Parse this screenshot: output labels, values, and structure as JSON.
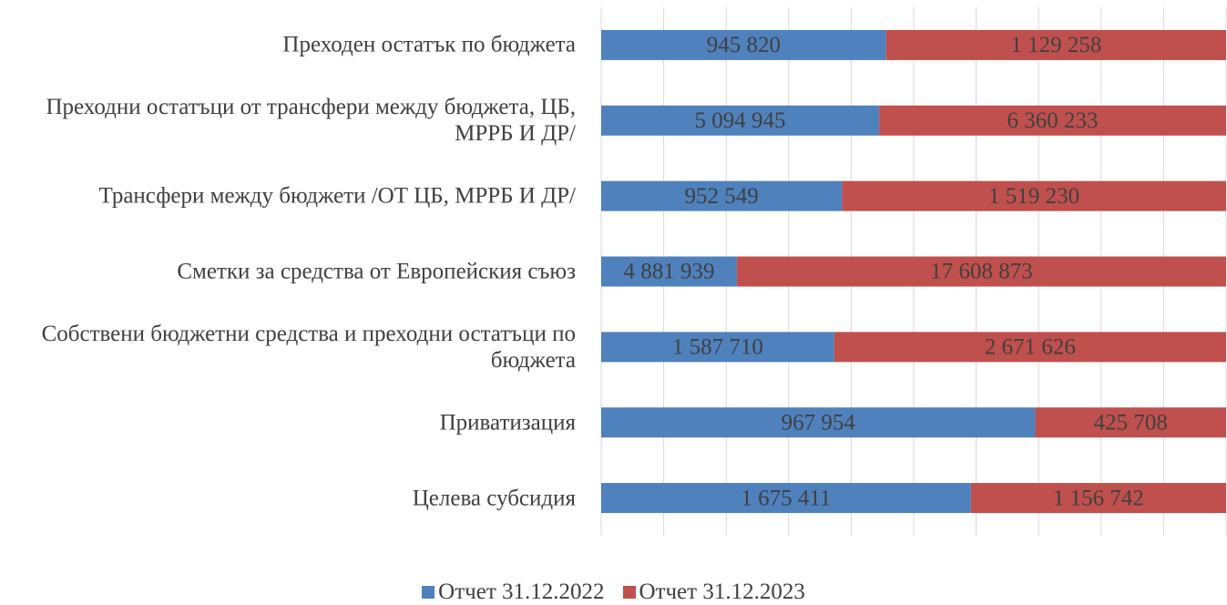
{
  "chart_data": {
    "type": "bar",
    "orientation": "horizontal",
    "stacking": "percent",
    "categories": [
      "Преходен остатък по бюджета",
      "Преходни остатъци от трансфери между бюджета, ЦБ, МРРБ И ДР/",
      "Трансфери между бюджети /ОТ ЦБ, МРРБ И ДР/",
      "Сметки за средства от Европейския съюз",
      "Собствени бюджетни средства и преходни остатъци по бюджета",
      "Приватизация",
      "Целева субсидия"
    ],
    "series": [
      {
        "name": "Отчет 31.12.2022",
        "color": "#4f81bd",
        "values": [
          945820,
          5094945,
          952549,
          4881939,
          1587710,
          967954,
          1675411
        ],
        "value_labels": [
          "945 820",
          "5 094 945",
          "952 549",
          "4 881 939",
          "1 587 710",
          "967 954",
          "1 675 411"
        ]
      },
      {
        "name": "Отчет 31.12.2023",
        "color": "#c0504d",
        "values": [
          1129258,
          6360233,
          1519230,
          17608873,
          2671626,
          425708,
          1156742
        ],
        "value_labels": [
          "1 129 258",
          "6 360 233",
          "1 519 230",
          "17 608 873",
          "2 671 626",
          "425 708",
          "1 156 742"
        ]
      }
    ],
    "xlim": [
      0,
      100
    ],
    "xticks": [
      0,
      10,
      20,
      30,
      40,
      50,
      60,
      70,
      80,
      90,
      100
    ],
    "grid": true,
    "legend": "bottom"
  }
}
